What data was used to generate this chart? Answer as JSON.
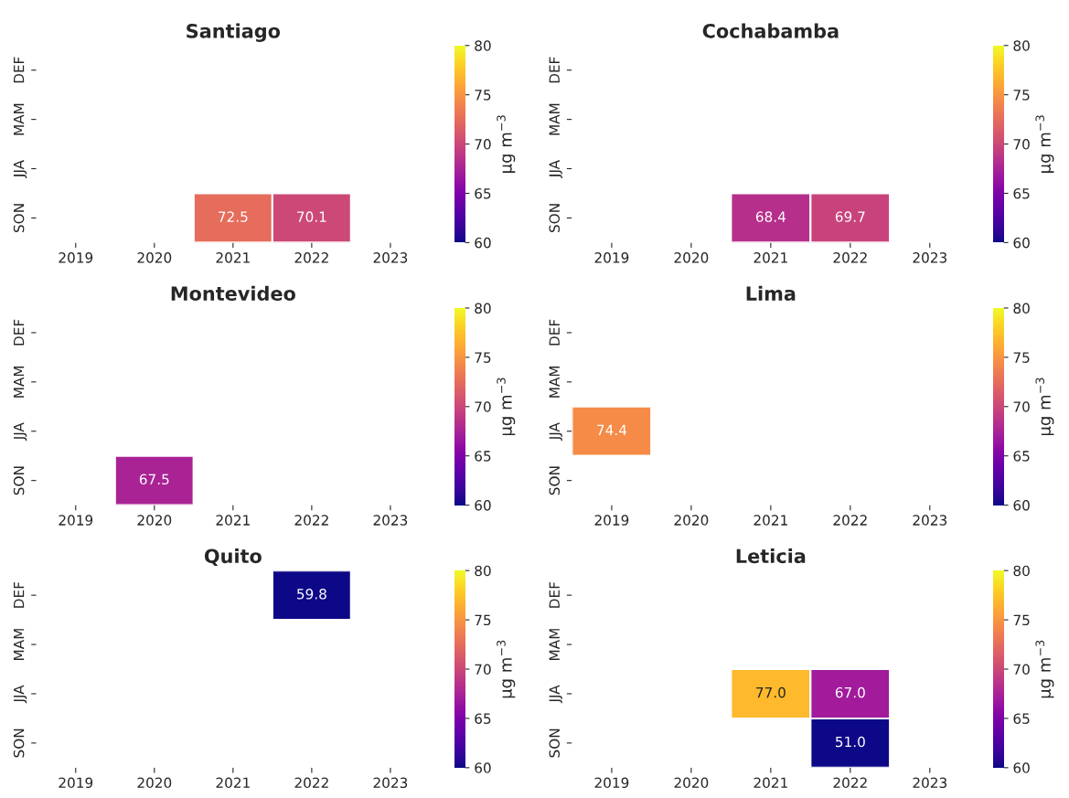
{
  "chart_data": [
    {
      "type": "heatmap",
      "title": "Santiago",
      "categories": [
        "2019",
        "2020",
        "2021",
        "2022",
        "2023"
      ],
      "y_categories": [
        "DEF",
        "MAM",
        "JJA",
        "SON"
      ],
      "cells": [
        [
          null,
          null,
          null,
          null,
          null
        ],
        [
          null,
          null,
          null,
          null,
          null
        ],
        [
          null,
          null,
          null,
          null,
          null
        ],
        [
          null,
          null,
          72.5,
          70.1,
          null
        ]
      ],
      "data_labels": true,
      "clim": [
        60,
        80
      ],
      "cticks": [
        60,
        65,
        70,
        75,
        80
      ],
      "clabel": "μg m$^{−3}$"
    },
    {
      "type": "heatmap",
      "title": "Cochabamba",
      "categories": [
        "2019",
        "2020",
        "2021",
        "2022",
        "2023"
      ],
      "y_categories": [
        "DEF",
        "MAM",
        "JJA",
        "SON"
      ],
      "cells": [
        [
          null,
          null,
          null,
          null,
          null
        ],
        [
          null,
          null,
          null,
          null,
          null
        ],
        [
          null,
          null,
          null,
          null,
          null
        ],
        [
          null,
          null,
          68.4,
          69.7,
          null
        ]
      ],
      "data_labels": true,
      "clim": [
        60,
        80
      ],
      "cticks": [
        60,
        65,
        70,
        75,
        80
      ],
      "clabel": "μg m$^{−3}$"
    },
    {
      "type": "heatmap",
      "title": "Montevideo",
      "categories": [
        "2019",
        "2020",
        "2021",
        "2022",
        "2023"
      ],
      "y_categories": [
        "DEF",
        "MAM",
        "JJA",
        "SON"
      ],
      "cells": [
        [
          null,
          null,
          null,
          null,
          null
        ],
        [
          null,
          null,
          null,
          null,
          null
        ],
        [
          null,
          null,
          null,
          null,
          null
        ],
        [
          null,
          67.5,
          null,
          null,
          null
        ]
      ],
      "data_labels": true,
      "clim": [
        60,
        80
      ],
      "cticks": [
        60,
        65,
        70,
        75,
        80
      ],
      "clabel": "μg m$^{−3}$"
    },
    {
      "type": "heatmap",
      "title": "Lima",
      "categories": [
        "2019",
        "2020",
        "2021",
        "2022",
        "2023"
      ],
      "y_categories": [
        "DEF",
        "MAM",
        "JJA",
        "SON"
      ],
      "cells": [
        [
          null,
          null,
          null,
          null,
          null
        ],
        [
          null,
          null,
          null,
          null,
          null
        ],
        [
          74.4,
          null,
          null,
          null,
          null
        ],
        [
          null,
          null,
          null,
          null,
          null
        ]
      ],
      "data_labels": true,
      "clim": [
        60,
        80
      ],
      "cticks": [
        60,
        65,
        70,
        75,
        80
      ],
      "clabel": "μg m$^{−3}$"
    },
    {
      "type": "heatmap",
      "title": "Quito",
      "categories": [
        "2019",
        "2020",
        "2021",
        "2022",
        "2023"
      ],
      "y_categories": [
        "DEF",
        "MAM",
        "JJA",
        "SON"
      ],
      "cells": [
        [
          null,
          null,
          null,
          59.8,
          null
        ],
        [
          null,
          null,
          null,
          null,
          null
        ],
        [
          null,
          null,
          null,
          null,
          null
        ],
        [
          null,
          null,
          null,
          null,
          null
        ]
      ],
      "data_labels": true,
      "clim": [
        60,
        80
      ],
      "cticks": [
        60,
        65,
        70,
        75,
        80
      ],
      "clabel": "μg m$^{−3}$"
    },
    {
      "type": "heatmap",
      "title": "Leticia",
      "categories": [
        "2019",
        "2020",
        "2021",
        "2022",
        "2023"
      ],
      "y_categories": [
        "DEF",
        "MAM",
        "JJA",
        "SON"
      ],
      "cells": [
        [
          null,
          null,
          null,
          null,
          null
        ],
        [
          null,
          null,
          null,
          null,
          null
        ],
        [
          null,
          null,
          77.0,
          67.0,
          null
        ],
        [
          null,
          null,
          null,
          51.0,
          null
        ]
      ],
      "cell_labels": [
        [
          null,
          null,
          null,
          null,
          null
        ],
        [
          null,
          null,
          null,
          null,
          null
        ],
        [
          null,
          null,
          "77.0",
          "67.0",
          null
        ],
        [
          null,
          null,
          null,
          "51.0",
          null
        ]
      ],
      "clim": [
        60,
        80
      ],
      "cticks": [
        60,
        65,
        70,
        75,
        80
      ],
      "clabel": "μg m$^{−3}$"
    }
  ]
}
